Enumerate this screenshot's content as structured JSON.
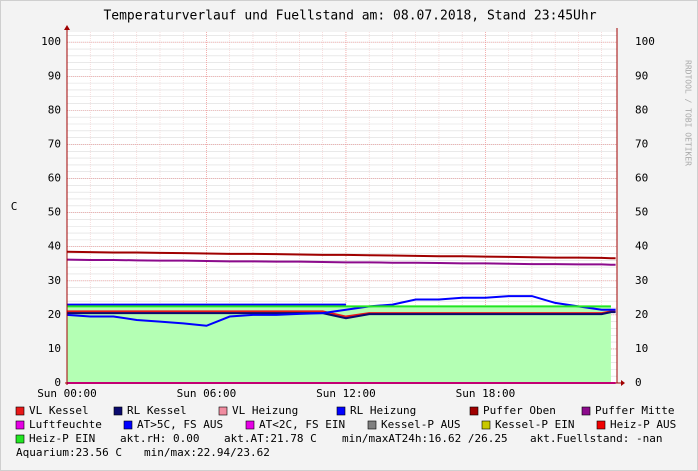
{
  "chart_data": {
    "type": "line",
    "title": "Temperaturverlauf und Fuellstand am: 08.07.2018, Stand 23:45Uhr",
    "y_label": "C",
    "side_text": "RRDTOOL / TOBI OETIKER",
    "x": [
      0,
      1,
      2,
      3,
      4,
      5,
      6,
      7,
      8,
      9,
      10,
      11,
      12,
      13,
      14,
      15,
      16,
      17,
      18,
      19,
      20,
      21,
      22,
      23,
      23.4,
      23.6
    ],
    "xlim": [
      0,
      23.66
    ],
    "xticks": [
      {
        "value": 0,
        "label": "Sun 00:00"
      },
      {
        "value": 6,
        "label": "Sun 06:00"
      },
      {
        "value": 12,
        "label": "Sun 12:00"
      },
      {
        "value": 18,
        "label": "Sun 18:00"
      }
    ],
    "ylim": [
      0,
      103
    ],
    "yticks": [
      0,
      10,
      20,
      30,
      40,
      50,
      60,
      70,
      80,
      90,
      100
    ],
    "grid": true,
    "series": [
      {
        "name": "VL Kessel",
        "color": "#e81818",
        "values": [
          21,
          21,
          21,
          21,
          21,
          21,
          21,
          21,
          21,
          21,
          21,
          21,
          19.5,
          20.5,
          20.5,
          20.5,
          20.5,
          20.5,
          20.5,
          20.5,
          20.5,
          20.5,
          20.5,
          20.5,
          21,
          21
        ]
      },
      {
        "name": "RL Kessel",
        "color": "#0a0a6e",
        "values": [
          20.5,
          20.5,
          20.5,
          20.5,
          20.5,
          20.5,
          20.5,
          20.5,
          20.5,
          20.5,
          20.5,
          20.5,
          19,
          20.2,
          20.2,
          20.2,
          20.2,
          20.2,
          20.2,
          20.2,
          20.2,
          20.2,
          20.2,
          20.2,
          20.8,
          20.8
        ]
      },
      {
        "name": "VL Heizung",
        "color": "#f08ca0",
        "values": [
          null,
          null,
          null,
          null,
          null,
          null,
          null,
          null,
          null,
          null,
          null,
          null,
          null,
          null,
          null,
          null,
          null,
          null,
          null,
          null,
          null,
          null,
          null,
          null,
          null,
          null
        ]
      },
      {
        "name": "RL Heizung",
        "color": "#0000ff",
        "values": [
          20,
          19.5,
          19.5,
          18.5,
          18,
          17.5,
          16.8,
          19.5,
          20,
          20,
          20.3,
          20.5,
          21.5,
          22.5,
          23,
          24.5,
          24.5,
          25,
          25,
          25.5,
          25.5,
          23.5,
          22.5,
          21.5,
          21.5,
          21.5
        ]
      },
      {
        "name": "Puffer Oben",
        "color": "#a00000",
        "values": [
          38.5,
          38.4,
          38.3,
          38.3,
          38.2,
          38.1,
          38.0,
          37.9,
          37.9,
          37.8,
          37.7,
          37.6,
          37.6,
          37.5,
          37.4,
          37.3,
          37.2,
          37.2,
          37.1,
          37.0,
          36.9,
          36.8,
          36.8,
          36.7,
          36.6,
          36.6
        ]
      },
      {
        "name": "Puffer Mitte",
        "color": "#8c0a8c",
        "values": [
          36.2,
          36.1,
          36.1,
          36.0,
          35.9,
          35.9,
          35.8,
          35.7,
          35.7,
          35.6,
          35.6,
          35.5,
          35.4,
          35.4,
          35.3,
          35.3,
          35.2,
          35.1,
          35.1,
          35.0,
          34.9,
          34.9,
          34.8,
          34.8,
          34.7,
          34.7
        ]
      },
      {
        "name": "Luftfeuchte",
        "color": "#e600e6",
        "values": [
          0,
          0,
          0,
          0,
          0,
          0,
          0,
          0,
          0,
          0,
          0,
          0,
          0,
          0,
          0,
          0,
          0,
          0,
          0,
          0,
          0,
          0,
          0,
          0,
          0,
          0
        ]
      },
      {
        "name": "AT>5C, FS AUS",
        "color": "#0000ff",
        "values": [
          23,
          23,
          23,
          23,
          23,
          23,
          23,
          23,
          23,
          23,
          23,
          23,
          23,
          null,
          null,
          null,
          null,
          null,
          null,
          null,
          null,
          null,
          null,
          null,
          null,
          null
        ]
      },
      {
        "name": "AT<2C, FS EIN",
        "color": "#e600e6",
        "values": [
          null,
          null,
          null,
          null,
          null,
          null,
          null,
          null,
          null,
          null,
          null,
          null,
          null,
          null,
          null,
          null,
          null,
          null,
          null,
          null,
          null,
          null,
          null,
          null,
          null,
          null
        ]
      },
      {
        "name": "Kessel-P AUS",
        "color": "#808080",
        "values": [
          null,
          null,
          null,
          null,
          null,
          null,
          null,
          null,
          null,
          null,
          null,
          null,
          null,
          null,
          null,
          null,
          null,
          null,
          null,
          null,
          null,
          null,
          null,
          null,
          null,
          null
        ]
      },
      {
        "name": "Kessel-P EIN",
        "color": "#c8c800",
        "values": [
          null,
          null,
          null,
          null,
          null,
          null,
          null,
          null,
          null,
          null,
          null,
          null,
          null,
          null,
          null,
          null,
          null,
          null,
          null,
          null,
          null,
          null,
          null,
          null,
          null,
          null
        ]
      },
      {
        "name": "Heiz-P AUS",
        "color": "#f00000",
        "values": [
          null,
          null,
          null,
          null,
          null,
          null,
          null,
          null,
          null,
          null,
          null,
          null,
          null,
          null,
          null,
          null,
          null,
          null,
          null,
          null,
          null,
          null,
          null,
          null,
          null,
          null
        ]
      },
      {
        "name": "Heiz-P EIN",
        "color": "#22e622",
        "area": true,
        "values": [
          22.5,
          22.5,
          22.5,
          22.5,
          22.5,
          22.5,
          22.5,
          22.5,
          22.5,
          22.5,
          22.5,
          22.5,
          22.5,
          22.5,
          22.5,
          22.5,
          22.5,
          22.5,
          22.5,
          22.5,
          22.5,
          22.5,
          22.5,
          22.5,
          22.5,
          null
        ]
      }
    ],
    "notes": [
      "akt.rH: 0.00",
      "akt.AT:21.78 C",
      "min/maxAT24h:16.62 /26.25",
      "akt.Fuellstand: -nan",
      "Aquarium:23.56 C",
      "min/max:22.94/23.62"
    ]
  }
}
